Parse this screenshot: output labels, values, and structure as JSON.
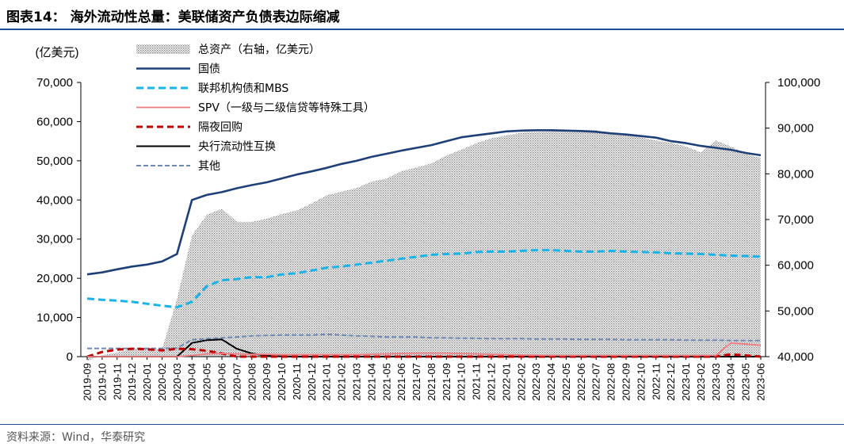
{
  "header": {
    "title": "图表14：  海外流动性总量：美联储资产负债表边际缩减"
  },
  "footer": {
    "source": "资料来源：Wind，华泰研究"
  },
  "chart_data": {
    "type": "line",
    "left_axis_label": "(亿美元)",
    "ylim_left": [
      0,
      70000
    ],
    "yticks_left": [
      "0",
      "10,000",
      "20,000",
      "30,000",
      "40,000",
      "50,000",
      "60,000",
      "70,000"
    ],
    "ylim_right": [
      40000,
      100000
    ],
    "yticks_right": [
      "40,000",
      "50,000",
      "60,000",
      "70,000",
      "80,000",
      "90,000",
      "100,000"
    ],
    "x_labels": [
      "2019-09",
      "2019-10",
      "2019-11",
      "2019-12",
      "2020-01",
      "2020-02",
      "2020-03",
      "2020-04",
      "2020-05",
      "2020-06",
      "2020-07",
      "2020-08",
      "2020-09",
      "2020-10",
      "2020-11",
      "2020-12",
      "2021-01",
      "2021-02",
      "2021-03",
      "2021-04",
      "2021-05",
      "2021-06",
      "2021-07",
      "2021-08",
      "2021-09",
      "2021-10",
      "2021-11",
      "2021-12",
      "2022-01",
      "2022-02",
      "2022-03",
      "2022-04",
      "2022-05",
      "2022-06",
      "2022-07",
      "2022-08",
      "2022-09",
      "2022-10",
      "2022-11",
      "2022-12",
      "2023-01",
      "2023-02",
      "2023-03",
      "2023-04",
      "2023-05",
      "2023-06"
    ],
    "legend_placement": "top-center",
    "series": [
      {
        "name": "总资产（右轴，亿美元）",
        "axis": "right",
        "style": "dotted-area",
        "color": "#8c8c8c",
        "values": [
          39100,
          40300,
          40900,
          41800,
          41700,
          41600,
          52600,
          66500,
          71100,
          72400,
          69500,
          69500,
          70200,
          71200,
          72000,
          73500,
          75300,
          76100,
          76900,
          78300,
          79000,
          80600,
          81400,
          82300,
          84000,
          85300,
          86700,
          87800,
          88400,
          89000,
          89200,
          89300,
          89500,
          89600,
          89600,
          88700,
          88600,
          88000,
          87300,
          86800,
          86000,
          84700,
          87300,
          86000,
          84400,
          83500
        ]
      },
      {
        "name": "国债",
        "axis": "left",
        "style": "solid",
        "color": "#1f3f77",
        "values": [
          21000,
          21500,
          22300,
          23000,
          23500,
          24300,
          26200,
          40000,
          41300,
          42000,
          43000,
          43800,
          44500,
          45500,
          46500,
          47300,
          48200,
          49200,
          50000,
          51000,
          51800,
          52600,
          53300,
          54000,
          55000,
          56000,
          56500,
          57000,
          57500,
          57700,
          57800,
          57800,
          57700,
          57600,
          57400,
          57000,
          56700,
          56300,
          55900,
          55000,
          54500,
          53800,
          53300,
          52800,
          52000,
          51400
        ]
      },
      {
        "name": "联邦机构债和MBS",
        "axis": "left",
        "style": "dashed",
        "color": "#19b3e8",
        "values": [
          14800,
          14500,
          14300,
          14000,
          13500,
          13000,
          12600,
          14000,
          18000,
          19500,
          19800,
          20300,
          20300,
          21000,
          21300,
          22000,
          22700,
          23000,
          23500,
          24000,
          24500,
          25000,
          25500,
          26000,
          26200,
          26300,
          26700,
          26800,
          26800,
          27000,
          27200,
          27200,
          27000,
          26800,
          26800,
          27000,
          26800,
          26700,
          26600,
          26400,
          26300,
          26200,
          26000,
          25800,
          25700,
          25500
        ]
      },
      {
        "name": "SPV（一级与二级信贷等特殊工具）",
        "axis": "left",
        "style": "solid",
        "color": "#f07c82",
        "values": [
          0,
          0,
          0,
          0,
          0,
          0,
          0,
          300,
          700,
          800,
          700,
          600,
          600,
          500,
          500,
          500,
          500,
          500,
          500,
          600,
          700,
          800,
          900,
          900,
          900,
          800,
          700,
          600,
          500,
          400,
          350,
          300,
          300,
          300,
          300,
          300,
          300,
          300,
          300,
          300,
          300,
          300,
          300,
          3500,
          3200,
          2900
        ]
      },
      {
        "name": "隔夜回购",
        "axis": "left",
        "style": "dashed",
        "color": "#c00000",
        "values": [
          0,
          1200,
          1800,
          2000,
          1900,
          1600,
          2000,
          1900,
          1500,
          800,
          0,
          0,
          0,
          0,
          0,
          0,
          0,
          0,
          0,
          0,
          0,
          0,
          0,
          0,
          0,
          0,
          0,
          0,
          0,
          0,
          0,
          0,
          0,
          0,
          0,
          0,
          0,
          0,
          0,
          0,
          0,
          0,
          0,
          600,
          300,
          0
        ]
      },
      {
        "name": "央行流动性互换",
        "axis": "left",
        "style": "solid",
        "color": "#000000",
        "values": [
          0,
          0,
          0,
          0,
          0,
          0,
          0,
          3500,
          4200,
          4400,
          2000,
          800,
          200,
          50,
          0,
          0,
          0,
          0,
          0,
          0,
          0,
          0,
          0,
          0,
          0,
          0,
          0,
          0,
          0,
          0,
          0,
          0,
          0,
          0,
          0,
          0,
          0,
          0,
          0,
          0,
          0,
          0,
          0,
          0,
          0,
          0
        ]
      },
      {
        "name": "其他",
        "axis": "left",
        "style": "dashed",
        "color": "#6e89b3",
        "values": [
          2100,
          2100,
          2100,
          2100,
          2100,
          2100,
          2200,
          4300,
          4600,
          4800,
          5000,
          5300,
          5400,
          5500,
          5500,
          5500,
          5700,
          5500,
          5300,
          5200,
          5000,
          5000,
          5000,
          4800,
          4800,
          4700,
          4700,
          4600,
          4600,
          4600,
          4500,
          4500,
          4500,
          4400,
          4400,
          4400,
          4300,
          4300,
          4300,
          4300,
          4200,
          4200,
          4200,
          4100,
          4100,
          4100
        ]
      }
    ]
  }
}
